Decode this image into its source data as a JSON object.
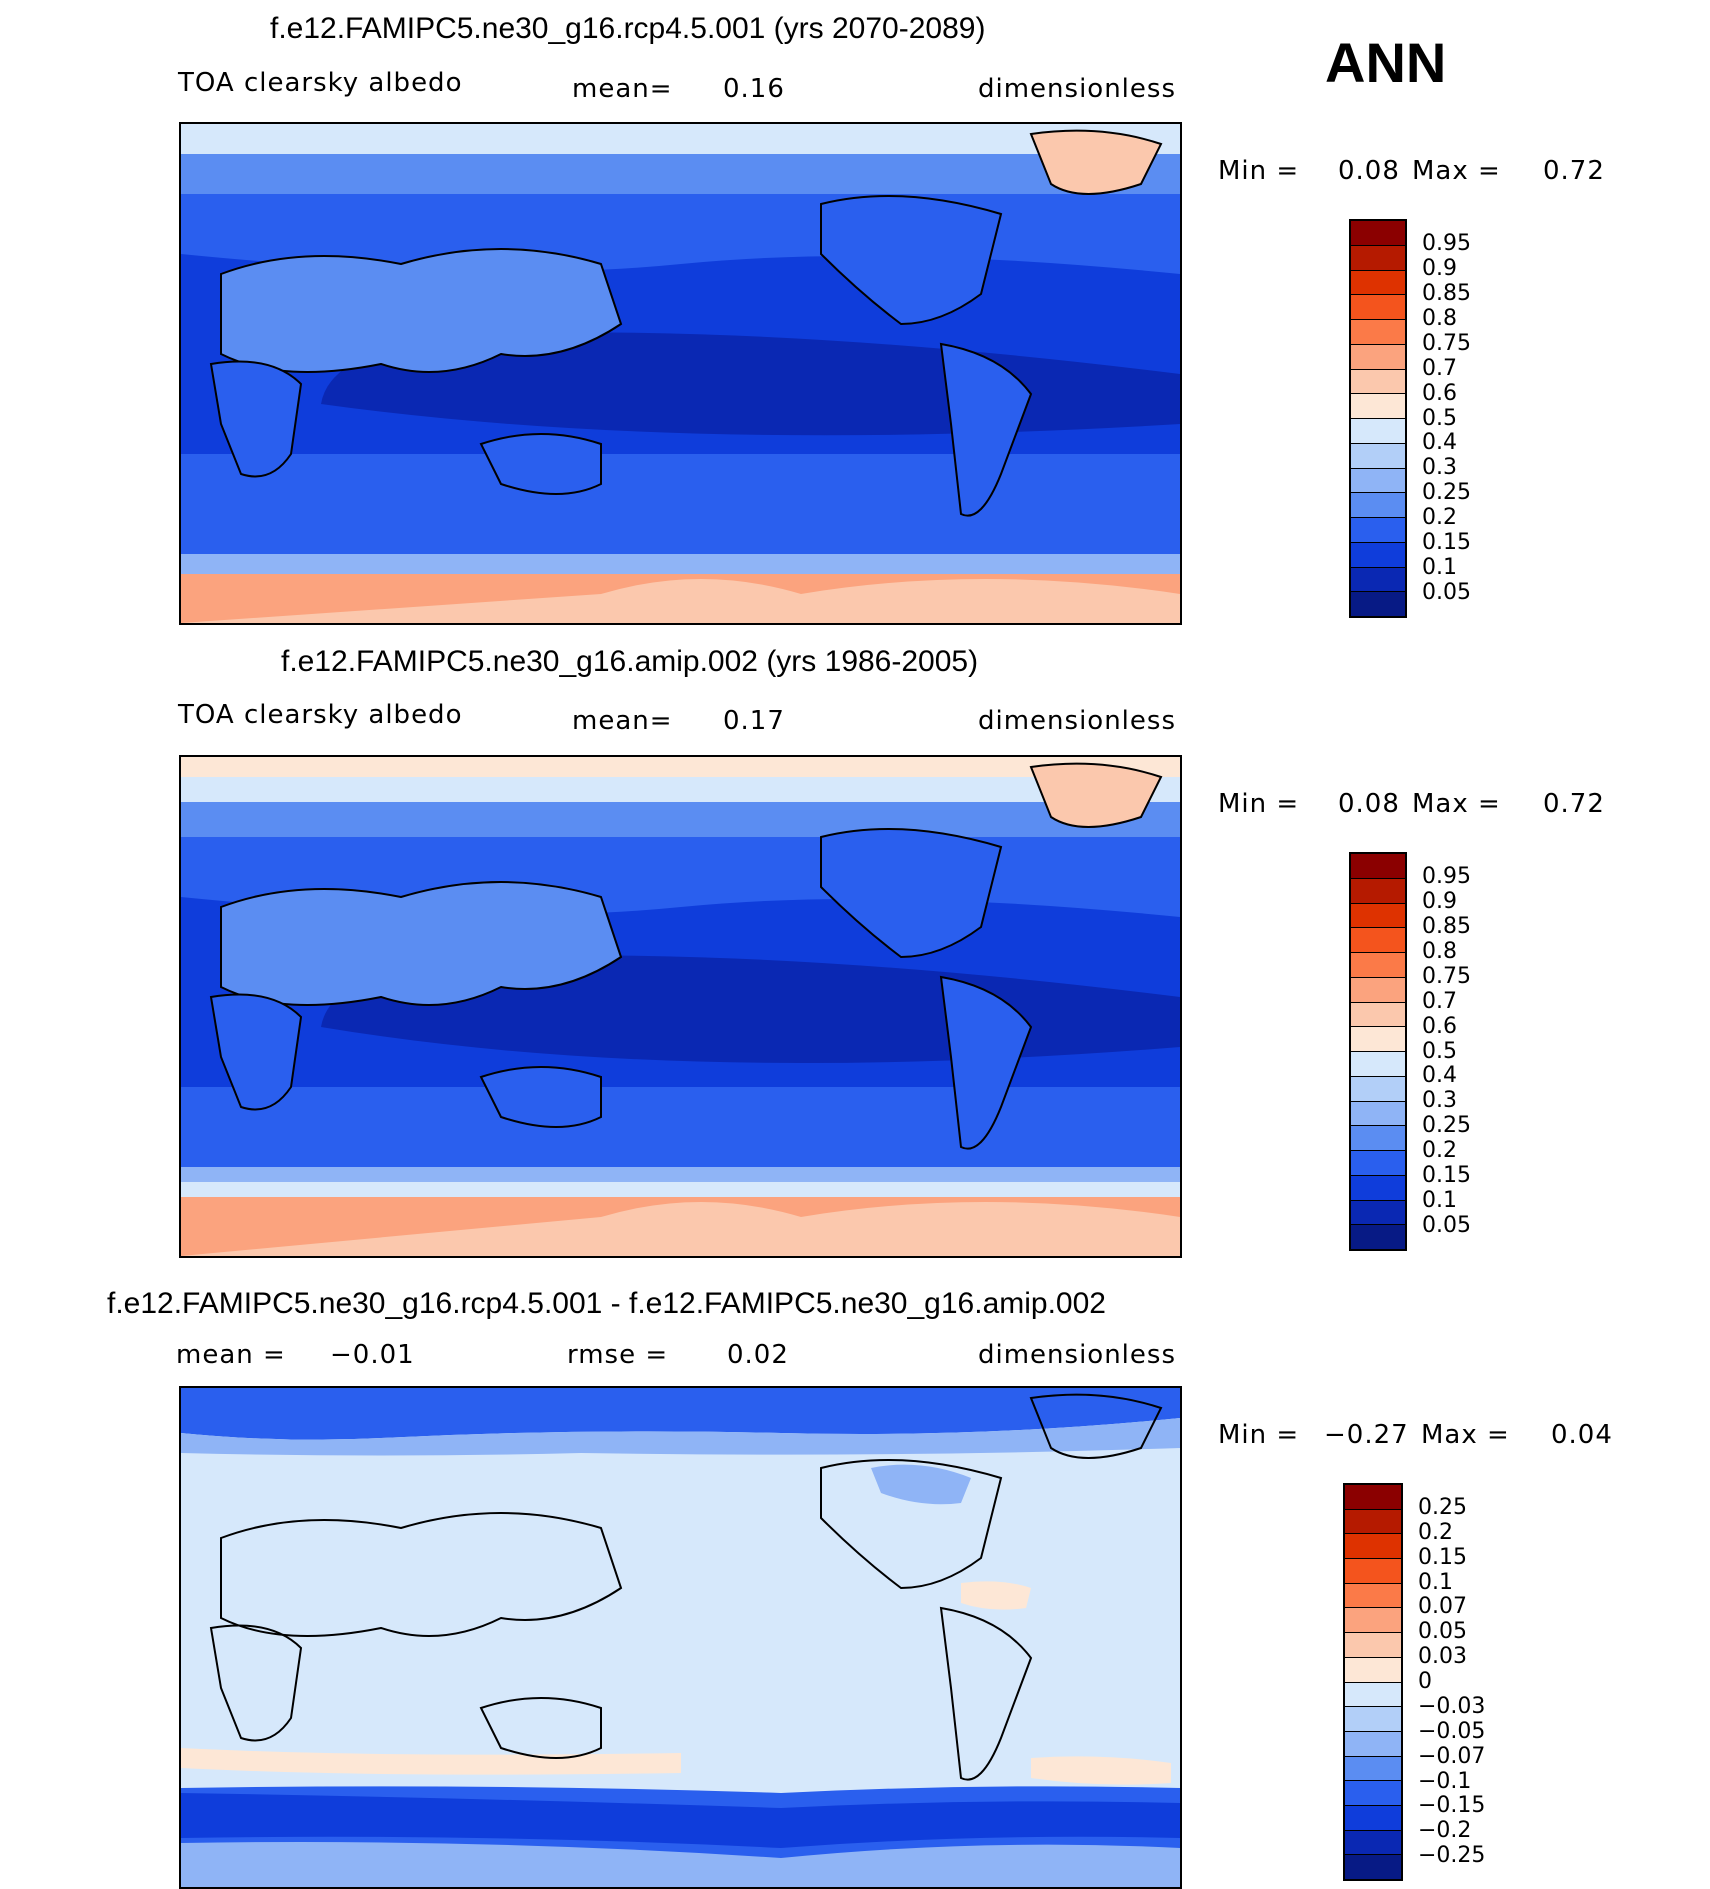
{
  "season": "ANN",
  "panels": [
    {
      "title": "f.e12.FAMIPC5.ne30_g16.rcp4.5.001 (yrs 2070-2089)",
      "variable": "TOA clearsky albedo",
      "stat_label": "mean=",
      "stat_value": "0.16",
      "units": "dimensionless",
      "min_label": "Min =",
      "min_value": "0.08",
      "max_label": "Max =",
      "max_value": "0.72",
      "colorbar_levels": [
        "0.95",
        "0.9",
        "0.85",
        "0.8",
        "0.75",
        "0.7",
        "0.6",
        "0.5",
        "0.4",
        "0.3",
        "0.25",
        "0.2",
        "0.15",
        "0.1",
        "0.05"
      ],
      "colorbar_colors": [
        "#8b0000",
        "#b51a00",
        "#de3200",
        "#f4541d",
        "#fb7a48",
        "#fba37e",
        "#fbc8ad",
        "#fde7d6",
        "#d6e8fb",
        "#b2cff8",
        "#8fb4f6",
        "#5b8df2",
        "#2a5fee",
        "#0f3ddb",
        "#0a28b3",
        "#071a85"
      ]
    },
    {
      "title": "f.e12.FAMIPC5.ne30_g16.amip.002 (yrs 1986-2005)",
      "variable": "TOA clearsky albedo",
      "stat_label": "mean=",
      "stat_value": "0.17",
      "units": "dimensionless",
      "min_label": "Min =",
      "min_value": "0.08",
      "max_label": "Max =",
      "max_value": "0.72",
      "colorbar_levels": [
        "0.95",
        "0.9",
        "0.85",
        "0.8",
        "0.75",
        "0.7",
        "0.6",
        "0.5",
        "0.4",
        "0.3",
        "0.25",
        "0.2",
        "0.15",
        "0.1",
        "0.05"
      ],
      "colorbar_colors": [
        "#8b0000",
        "#b51a00",
        "#de3200",
        "#f4541d",
        "#fb7a48",
        "#fba37e",
        "#fbc8ad",
        "#fde7d6",
        "#d6e8fb",
        "#b2cff8",
        "#8fb4f6",
        "#5b8df2",
        "#2a5fee",
        "#0f3ddb",
        "#0a28b3",
        "#071a85"
      ]
    },
    {
      "title": "f.e12.FAMIPC5.ne30_g16.rcp4.5.001 - f.e12.FAMIPC5.ne30_g16.amip.002",
      "stat_label": "mean =",
      "stat_value": "−0.01",
      "stat2_label": "rmse =",
      "stat2_value": "0.02",
      "units": "dimensionless",
      "min_label": "Min =",
      "min_value": "−0.27",
      "max_label": "Max =",
      "max_value": "0.04",
      "colorbar_levels": [
        "0.25",
        "0.2",
        "0.15",
        "0.1",
        "0.07",
        "0.05",
        "0.03",
        "0",
        "−0.03",
        "−0.05",
        "−0.07",
        "−0.1",
        "−0.15",
        "−0.2",
        "−0.25"
      ],
      "colorbar_colors": [
        "#8b0000",
        "#b51a00",
        "#de3200",
        "#f4541d",
        "#fb7a48",
        "#fba37e",
        "#fbc8ad",
        "#fde7d6",
        "#d6e8fb",
        "#b2cff8",
        "#8fb4f6",
        "#5b8df2",
        "#2a5fee",
        "#0f3ddb",
        "#0a28b3",
        "#071a85"
      ]
    }
  ]
}
